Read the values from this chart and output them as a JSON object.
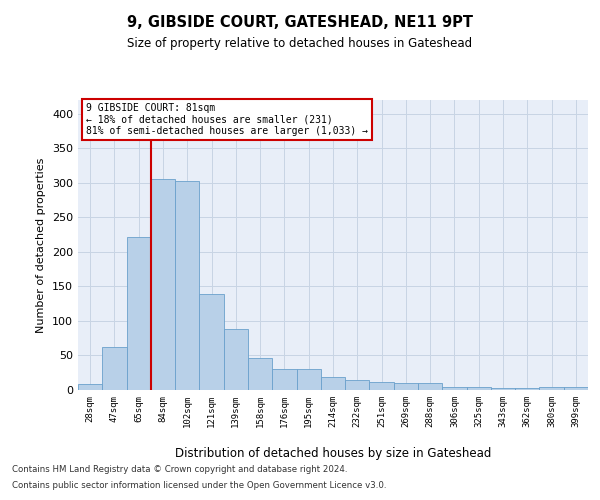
{
  "title": "9, GIBSIDE COURT, GATESHEAD, NE11 9PT",
  "subtitle": "Size of property relative to detached houses in Gateshead",
  "xlabel": "Distribution of detached houses by size in Gateshead",
  "ylabel": "Number of detached properties",
  "categories": [
    "28sqm",
    "47sqm",
    "65sqm",
    "84sqm",
    "102sqm",
    "121sqm",
    "139sqm",
    "158sqm",
    "176sqm",
    "195sqm",
    "214sqm",
    "232sqm",
    "251sqm",
    "269sqm",
    "288sqm",
    "306sqm",
    "325sqm",
    "343sqm",
    "362sqm",
    "380sqm",
    "399sqm"
  ],
  "values": [
    8,
    63,
    222,
    305,
    302,
    139,
    89,
    47,
    30,
    30,
    19,
    14,
    11,
    10,
    10,
    4,
    5,
    3,
    3,
    5,
    5
  ],
  "bar_color": "#b8d0e8",
  "bar_edge_color": "#6aa0cc",
  "vline_color": "#cc0000",
  "ylim": [
    0,
    420
  ],
  "yticks": [
    0,
    50,
    100,
    150,
    200,
    250,
    300,
    350,
    400
  ],
  "annotation_title": "9 GIBSIDE COURT: 81sqm",
  "annotation_line1": "← 18% of detached houses are smaller (231)",
  "annotation_line2": "81% of semi-detached houses are larger (1,033) →",
  "annotation_box_color": "#ffffff",
  "annotation_box_edge": "#cc0000",
  "grid_color": "#c8d4e4",
  "background_color": "#e8eef8",
  "footer1": "Contains HM Land Registry data © Crown copyright and database right 2024.",
  "footer2": "Contains public sector information licensed under the Open Government Licence v3.0."
}
